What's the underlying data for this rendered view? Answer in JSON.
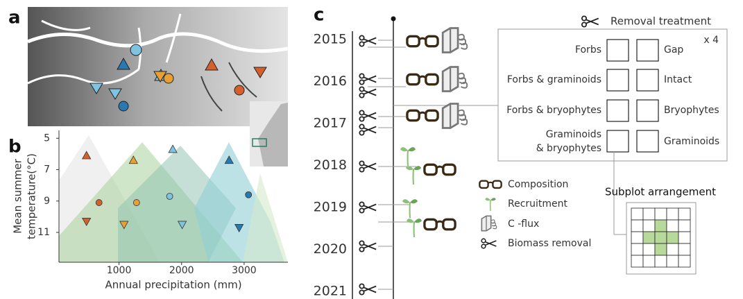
{
  "panels": {
    "a": "a",
    "b": "b",
    "c": "c"
  },
  "chart_data": {
    "type": "scatter",
    "xlabel": "Annual precipitation (mm)",
    "ylabel": [
      "Mean summer",
      "temperature(°C)"
    ],
    "xlim": [
      40,
      3700
    ],
    "xticks": [
      1000,
      2000,
      3000
    ],
    "ylim": [
      12.9,
      4.5
    ],
    "yticks": [
      5,
      7,
      9,
      11
    ],
    "markers": [
      "triangle-up",
      "circle",
      "triangle-down"
    ],
    "series": [
      {
        "color": "#d4612b",
        "x": [
          480,
          680,
          480
        ],
        "values": [
          6.1,
          9.1,
          10.3
        ]
      },
      {
        "color": "#e8a035",
        "x": [
          1230,
          1280,
          1080
        ],
        "values": [
          6.4,
          9.1,
          10.5
        ]
      },
      {
        "color": "#7fc3e3",
        "x": [
          1860,
          1810,
          2010
        ],
        "values": [
          5.7,
          8.7,
          10.5
        ]
      },
      {
        "color": "#2a78b0",
        "x": [
          2760,
          3070,
          2920
        ],
        "values": [
          6.4,
          8.6,
          10.7
        ]
      }
    ]
  },
  "timeline": {
    "years": [
      2015,
      2016,
      2017,
      2018,
      2019,
      2020,
      2021
    ]
  },
  "legend": [
    "Composition",
    "Recruitment",
    "C -flux",
    "Biomass removal"
  ],
  "treatment": {
    "title": "Removal treatment",
    "replicates": "x 4",
    "left": [
      "Forbs",
      "Forbs & graminoids",
      "Forbs & bryophytes",
      [
        "Graminoids",
        "& bryophytes"
      ]
    ],
    "right": [
      "Gap",
      "Intact",
      "Bryophytes",
      "Graminoids"
    ]
  },
  "subplot_title": "Subplot arrangement"
}
